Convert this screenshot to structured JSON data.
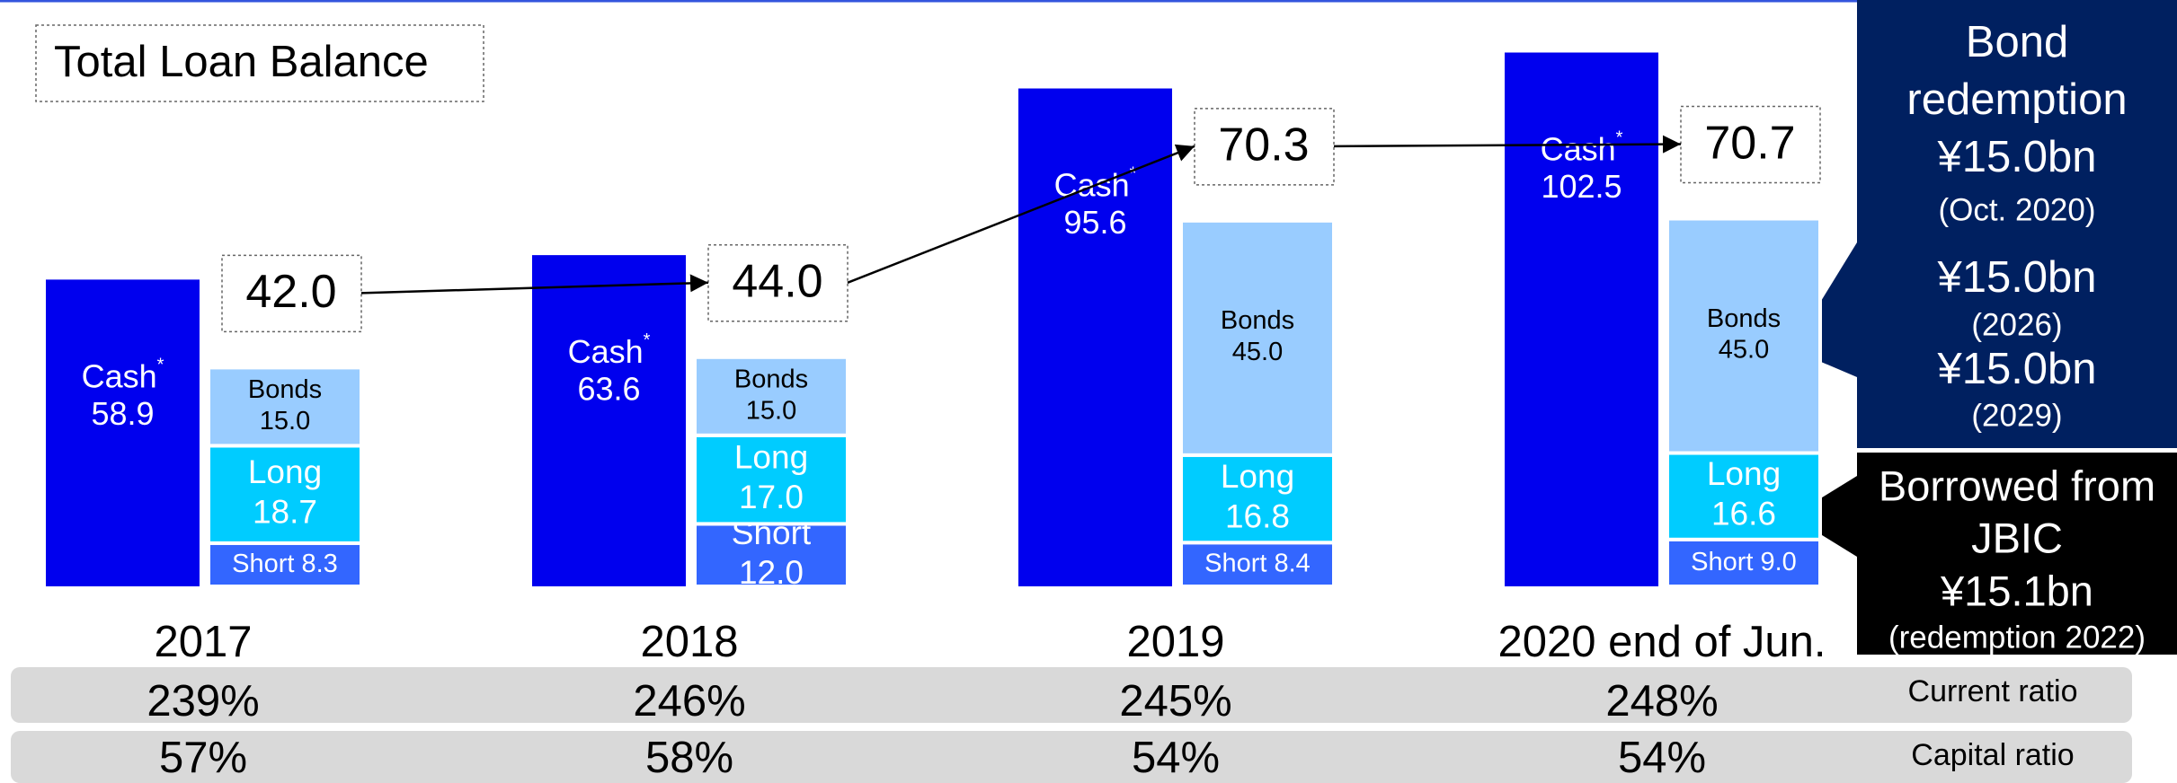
{
  "chart_data": {
    "type": "bar",
    "title": "Total Loan Balance",
    "categories": [
      "2017",
      "2018",
      "2019",
      "2020 end of Jun."
    ],
    "series": [
      {
        "name": "Cash",
        "footnote_mark": "*",
        "color": "#0000ee",
        "stacked": false,
        "values": [
          58.9,
          63.6,
          95.6,
          102.5
        ],
        "value_labels": [
          "58.9",
          "63.6",
          "95.6",
          "102.5"
        ]
      },
      {
        "name": "Short",
        "color": "#3366ff",
        "stacked": true,
        "values": [
          8.3,
          12.0,
          8.4,
          9.0
        ],
        "value_labels": [
          "8.3",
          "12.0",
          "8.4",
          "9.0"
        ]
      },
      {
        "name": "Long",
        "color": "#00ccff",
        "stacked": true,
        "values": [
          18.7,
          17.0,
          16.8,
          16.6
        ],
        "value_labels": [
          "18.7",
          "17.0",
          "16.8",
          "16.6"
        ]
      },
      {
        "name": "Bonds",
        "color": "#99ccff",
        "stacked": true,
        "values": [
          15.0,
          15.0,
          45.0,
          45.0
        ],
        "value_labels": [
          "15.0",
          "15.0",
          "45.0",
          "45.0"
        ]
      }
    ],
    "totals": {
      "values": [
        42.0,
        44.0,
        70.3,
        70.7
      ],
      "value_labels": [
        "42.0",
        "44.0",
        "70.3",
        "70.7"
      ]
    },
    "rows": [
      {
        "name": "Current ratio",
        "values": [
          239,
          246,
          245,
          248
        ],
        "value_labels": [
          "239%",
          "246%",
          "245%",
          "248%"
        ]
      },
      {
        "name": "Capital ratio",
        "values": [
          57,
          58,
          54,
          54
        ],
        "value_labels": [
          "57%",
          "58%",
          "54%",
          "54%"
        ]
      }
    ],
    "annotations": [
      {
        "lines": [
          "Bond",
          "redemption",
          "¥15.0bn",
          "(Oct. 2020)",
          "¥15.0bn",
          "(2026)",
          "¥15.0bn",
          "(2029)"
        ]
      },
      {
        "lines": [
          "Borrowed from",
          "JBIC",
          "¥15.1bn",
          "(redemption 2022)"
        ]
      }
    ]
  }
}
